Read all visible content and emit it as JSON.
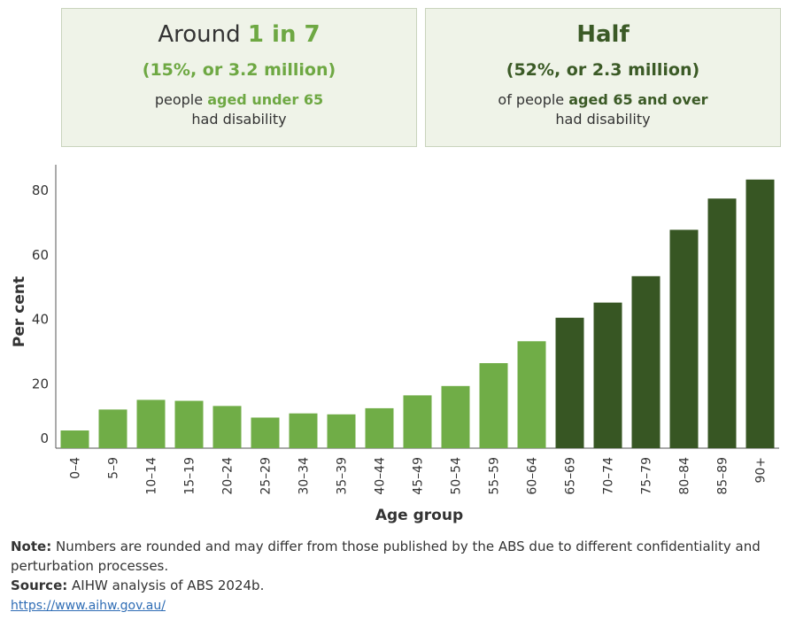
{
  "cards": {
    "under65": {
      "head_pre": "Around ",
      "head_em": "1 in 7",
      "sub": "(15%, or 3.2 million)",
      "txt_pre": "people ",
      "txt_em": "aged under 65",
      "txt_line2": "had disability"
    },
    "over65": {
      "head": "Half",
      "sub": "(52%, or 2.3 million)",
      "txt_pre": "of people ",
      "txt_em": "aged 65 and over",
      "txt_line2": "had disability"
    }
  },
  "chart_data": {
    "type": "bar",
    "xlabel": "Age group",
    "ylabel": "Per cent",
    "ylim": [
      0,
      88
    ],
    "yticks": [
      0,
      20,
      40,
      60,
      80
    ],
    "categories": [
      "0–4",
      "5–9",
      "10–14",
      "15–19",
      "20–24",
      "25–29",
      "30–34",
      "35–39",
      "40–44",
      "45–49",
      "50–54",
      "55–59",
      "60–64",
      "65–69",
      "70–74",
      "75–79",
      "80–84",
      "85–89",
      "90+"
    ],
    "values": [
      5.5,
      12,
      15,
      14.7,
      13.1,
      9.5,
      10.8,
      10.5,
      12.4,
      16.4,
      19.3,
      26.4,
      33.2,
      40.5,
      45.2,
      53.4,
      67.8,
      77.5,
      83.4
    ],
    "colors": {
      "under65": "#70ad47",
      "over65": "#375623"
    },
    "grid": false
  },
  "notes": {
    "note_label": "Note:",
    "note_text": " Numbers are rounded and may differ from those published by the ABS due to different confidentiality and perturbation processes.",
    "source_label": "Source:",
    "source_text": " AIHW analysis of ABS 2024b.",
    "url": "https://www.aihw.gov.au/"
  }
}
